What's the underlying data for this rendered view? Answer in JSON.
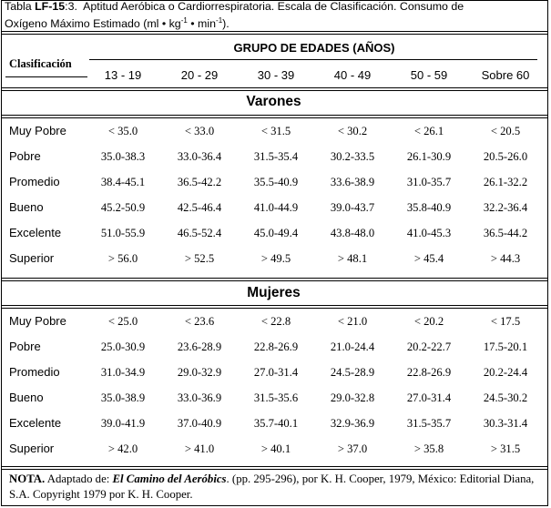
{
  "title": {
    "prefix": "Tabla ",
    "code": "LF-15",
    "suffix": ":3.",
    "line1_rest": "  Aptitud Aeróbica o Cardiorrespiratoria. Escala de Clasificación. Consumo de",
    "line2_a": "Oxígeno Máximo Estimado (ml • kg",
    "sup1": "-1",
    "line2_b": " • min",
    "sup2": "-1",
    "line2_c": ")."
  },
  "header": {
    "clasificacion": "Clasificación",
    "grupo": "GRUPO DE EDADES (AÑOS)",
    "ages": [
      "13 - 19",
      "20 - 29",
      "30 - 39",
      "40 - 49",
      "50 - 59",
      "Sobre 60"
    ]
  },
  "sections": [
    {
      "title": "Varones",
      "rows": [
        {
          "label": "Muy Pobre",
          "values": [
            "< 35.0",
            "< 33.0",
            "< 31.5",
            "< 30.2",
            "< 26.1",
            "< 20.5"
          ]
        },
        {
          "label": "Pobre",
          "values": [
            "35.0-38.3",
            "33.0-36.4",
            "31.5-35.4",
            "30.2-33.5",
            "26.1-30.9",
            "20.5-26.0"
          ]
        },
        {
          "label": "Promedio",
          "values": [
            "38.4-45.1",
            "36.5-42.2",
            "35.5-40.9",
            "33.6-38.9",
            "31.0-35.7",
            "26.1-32.2"
          ]
        },
        {
          "label": "Bueno",
          "values": [
            "45.2-50.9",
            "42.5-46.4",
            "41.0-44.9",
            "39.0-43.7",
            "35.8-40.9",
            "32.2-36.4"
          ]
        },
        {
          "label": "Excelente",
          "values": [
            "51.0-55.9",
            "46.5-52.4",
            "45.0-49.4",
            "43.8-48.0",
            "41.0-45.3",
            "36.5-44.2"
          ]
        },
        {
          "label": "Superior",
          "values": [
            "> 56.0",
            "> 52.5",
            "> 49.5",
            "> 48.1",
            "> 45.4",
            "> 44.3"
          ]
        }
      ]
    },
    {
      "title": "Mujeres",
      "rows": [
        {
          "label": "Muy Pobre",
          "values": [
            "< 25.0",
            "< 23.6",
            "< 22.8",
            "< 21.0",
            "< 20.2",
            "< 17.5"
          ]
        },
        {
          "label": "Pobre",
          "values": [
            "25.0-30.9",
            "23.6-28.9",
            "22.8-26.9",
            "21.0-24.4",
            "20.2-22.7",
            "17.5-20.1"
          ]
        },
        {
          "label": "Promedio",
          "values": [
            "31.0-34.9",
            "29.0-32.9",
            "27.0-31.4",
            "24.5-28.9",
            "22.8-26.9",
            "20.2-24.4"
          ]
        },
        {
          "label": "Bueno",
          "values": [
            "35.0-38.9",
            "33.0-36.9",
            "31.5-35.6",
            "29.0-32.8",
            "27.0-31.4",
            "24.5-30.2"
          ]
        },
        {
          "label": "Excelente",
          "values": [
            "39.0-41.9",
            "37.0-40.9",
            "35.7-40.1",
            "32.9-36.9",
            "31.5-35.7",
            "30.3-31.4"
          ]
        },
        {
          "label": "Superior",
          "values": [
            "> 42.0",
            "> 41.0",
            "> 40.1",
            "> 37.0",
            "> 35.8",
            "> 31.5"
          ]
        }
      ]
    }
  ],
  "note": {
    "label": "NOTA.",
    "text_a": " Adaptado de: ",
    "book": "El Camino del Aeróbics",
    "text_b": ". (pp. 295-296), por K. H. Cooper, 1979, México: Editorial Diana, S.A.  Copyright 1979 por K. H. Cooper."
  }
}
